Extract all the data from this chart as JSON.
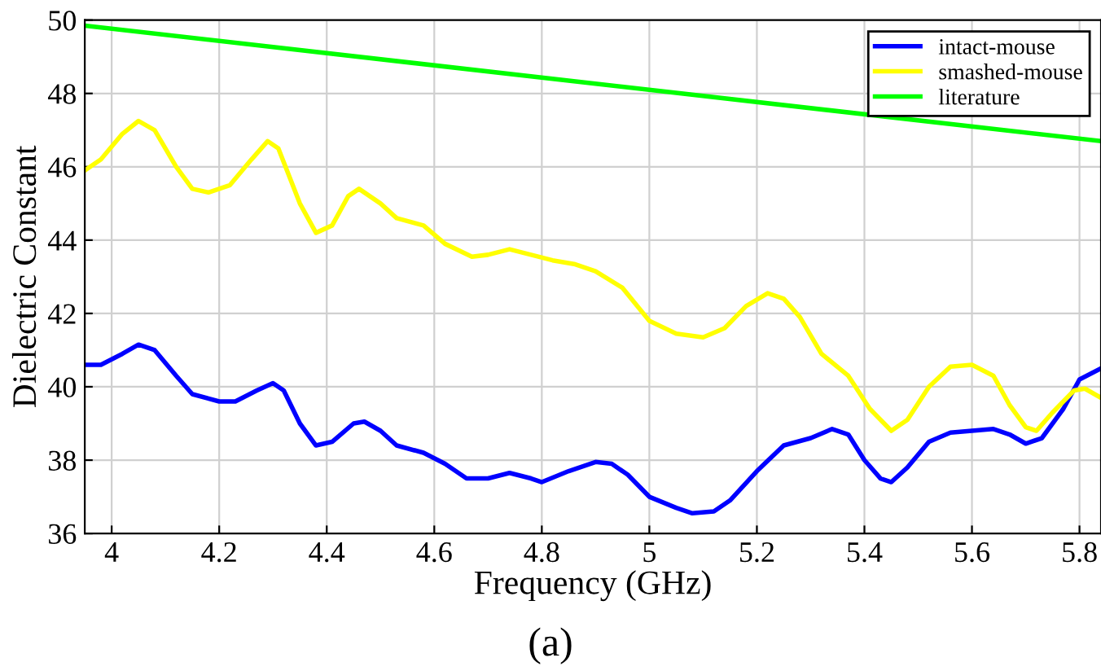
{
  "chart_data": {
    "type": "line",
    "xlabel": "Frequency (GHz)",
    "ylabel": "Dielectric Constant",
    "xlim": [
      3.95,
      5.84
    ],
    "xticks": [
      {
        "value": 4,
        "label": "4"
      },
      4.2,
      4.4,
      4.6,
      4.8,
      {
        "value": 5,
        "label": "5"
      },
      5.2,
      5.4,
      5.6,
      5.8
    ],
    "ylim": [
      36,
      50
    ],
    "yticks": [
      36,
      38,
      40,
      42,
      44,
      46,
      48,
      50
    ],
    "grid": true,
    "legend": "top right",
    "marker": "none",
    "line_style": "solid",
    "annotations": [
      "(a)"
    ],
    "series": [
      {
        "name": "intact-mouse",
        "color": "#0000ff",
        "x": [
          3.95,
          3.98,
          4.02,
          4.05,
          4.08,
          4.12,
          4.15,
          4.2,
          4.23,
          4.27,
          4.3,
          4.32,
          4.35,
          4.38,
          4.41,
          4.45,
          4.47,
          4.5,
          4.53,
          4.58,
          4.62,
          4.66,
          4.7,
          4.74,
          4.78,
          4.8,
          4.85,
          4.9,
          4.93,
          4.96,
          5.0,
          5.05,
          5.08,
          5.12,
          5.15,
          5.2,
          5.25,
          5.3,
          5.34,
          5.37,
          5.4,
          5.43,
          5.45,
          5.48,
          5.52,
          5.56,
          5.6,
          5.64,
          5.67,
          5.7,
          5.73,
          5.77,
          5.8,
          5.84
        ],
        "values": [
          40.6,
          40.6,
          40.9,
          41.15,
          41.0,
          40.3,
          39.8,
          39.6,
          39.6,
          39.9,
          40.1,
          39.9,
          39.0,
          38.4,
          38.5,
          39.0,
          39.05,
          38.8,
          38.4,
          38.2,
          37.9,
          37.5,
          37.5,
          37.65,
          37.5,
          37.4,
          37.7,
          37.95,
          37.9,
          37.6,
          37.0,
          36.7,
          36.55,
          36.6,
          36.9,
          37.7,
          38.4,
          38.6,
          38.85,
          38.7,
          38.0,
          37.5,
          37.4,
          37.8,
          38.5,
          38.75,
          38.8,
          38.85,
          38.7,
          38.45,
          38.6,
          39.4,
          40.2,
          40.5
        ]
      },
      {
        "name": "smashed-mouse",
        "color": "#ffff00",
        "x": [
          3.95,
          3.98,
          4.02,
          4.05,
          4.08,
          4.12,
          4.15,
          4.18,
          4.22,
          4.26,
          4.29,
          4.31,
          4.35,
          4.38,
          4.41,
          4.44,
          4.46,
          4.5,
          4.53,
          4.58,
          4.62,
          4.67,
          4.7,
          4.74,
          4.78,
          4.82,
          4.86,
          4.9,
          4.95,
          5.0,
          5.05,
          5.1,
          5.14,
          5.18,
          5.22,
          5.25,
          5.28,
          5.32,
          5.37,
          5.41,
          5.45,
          5.48,
          5.52,
          5.56,
          5.6,
          5.64,
          5.67,
          5.7,
          5.72,
          5.75,
          5.79,
          5.81,
          5.84
        ],
        "values": [
          45.9,
          46.2,
          46.9,
          47.25,
          47.0,
          46.0,
          45.4,
          45.3,
          45.5,
          46.2,
          46.7,
          46.5,
          45.0,
          44.2,
          44.4,
          45.2,
          45.4,
          45.0,
          44.6,
          44.4,
          43.9,
          43.55,
          43.6,
          43.75,
          43.6,
          43.45,
          43.35,
          43.15,
          42.7,
          41.8,
          41.45,
          41.35,
          41.6,
          42.2,
          42.55,
          42.4,
          41.9,
          40.9,
          40.3,
          39.4,
          38.8,
          39.1,
          40.0,
          40.55,
          40.6,
          40.3,
          39.5,
          38.9,
          38.8,
          39.3,
          39.9,
          39.95,
          39.7
        ]
      },
      {
        "name": "literature",
        "color": "#00ff00",
        "x": [
          3.95,
          5.84
        ],
        "values": [
          49.85,
          46.7
        ]
      }
    ]
  }
}
